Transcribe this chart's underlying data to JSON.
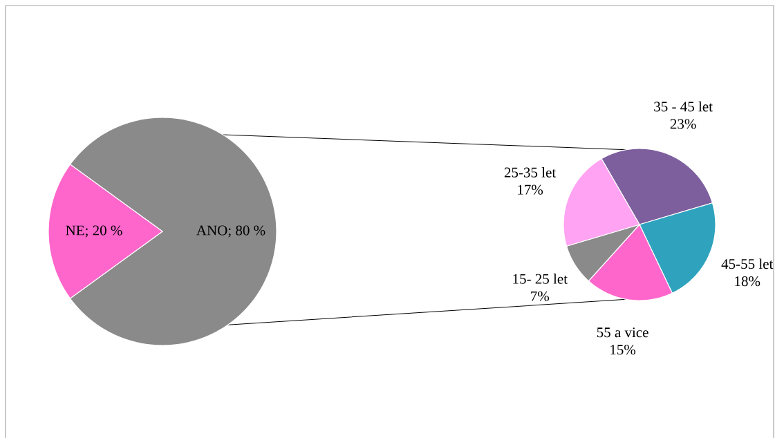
{
  "chart_data": [
    {
      "type": "pie",
      "categories": [
        "ANO",
        "NE"
      ],
      "values": [
        80,
        20
      ],
      "value_labels": [
        "; 80 %",
        "; 20 %"
      ],
      "colors": [
        "#8a8a8a",
        "#ff66cc"
      ]
    },
    {
      "type": "pie",
      "categories": [
        "35 - 45 let",
        "45-55 let",
        "55 a vice",
        "15- 25 let",
        "25-35 let"
      ],
      "values": [
        23,
        18,
        15,
        7,
        17
      ],
      "value_labels": [
        "23%",
        "18%",
        "15%",
        "7%",
        "17%"
      ],
      "colors": [
        "#7d5f9e",
        "#2fa3be",
        "#ff66cc",
        "#8a8a8a",
        "#ffa3f2"
      ]
    }
  ]
}
